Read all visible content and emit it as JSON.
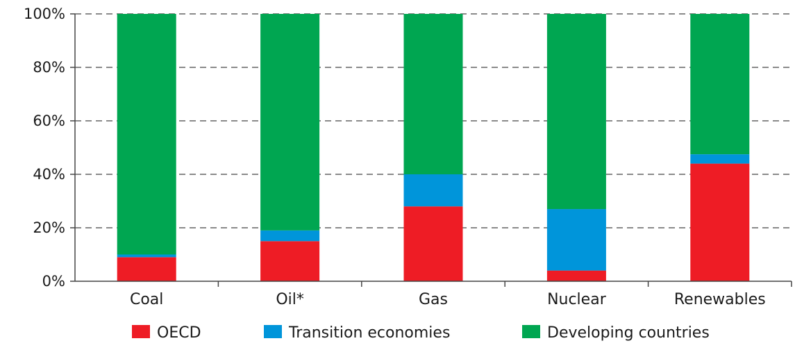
{
  "chart_data": {
    "type": "bar",
    "stacked": true,
    "categories": [
      "Coal",
      "Oil*",
      "Gas",
      "Nuclear",
      "Renewables"
    ],
    "series": [
      {
        "name": "OECD",
        "color": "#ee1c25",
        "values": [
          9,
          15,
          28,
          4,
          44
        ]
      },
      {
        "name": "Transition economies",
        "color": "#0095da",
        "values": [
          1,
          4,
          12,
          23,
          3.5
        ]
      },
      {
        "name": "Developing countries",
        "color": "#00a651",
        "values": [
          90,
          81,
          60,
          73,
          52.5
        ]
      }
    ],
    "ylim": [
      0,
      100
    ],
    "yticks": [
      0,
      20,
      40,
      60,
      80,
      100
    ],
    "ytick_labels": [
      "0%",
      "20%",
      "40%",
      "60%",
      "80%",
      "100%"
    ],
    "grid": "horizontal dashed",
    "legend_position": "bottom"
  }
}
